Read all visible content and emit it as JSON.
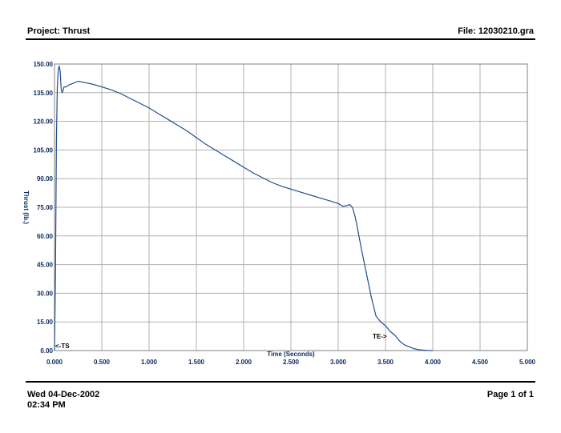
{
  "header": {
    "project": "Project: Thrust",
    "file": "File: 12030210.gra"
  },
  "footer": {
    "date": "Wed 04-Dec-2002",
    "time": "02:34 PM",
    "page": "Page 1 of 1"
  },
  "colors": {
    "line": "#1f4e8c",
    "grid": "#b0b0b0",
    "frame": "#808080",
    "text": "#0a2a5c"
  },
  "chart_data": {
    "type": "line",
    "title": "",
    "xlabel": "Time (Seconds)",
    "ylabel": "Thrust (lb.)",
    "xlim": [
      0,
      5
    ],
    "ylim": [
      0,
      150
    ],
    "xticks": [
      0,
      0.5,
      1,
      1.5,
      2,
      2.5,
      3,
      3.5,
      4,
      4.5,
      5
    ],
    "xtick_labels": [
      "0.000",
      "0.500",
      "1.000",
      "1.500",
      "2.000",
      "2.500",
      "3.000",
      "3.500",
      "4.000",
      "4.500",
      "5.000"
    ],
    "yticks": [
      0,
      15,
      30,
      45,
      60,
      75,
      90,
      105,
      120,
      135,
      150
    ],
    "ytick_labels": [
      "0.00",
      "15.00",
      "30.00",
      "45.00",
      "60.00",
      "75.00",
      "90.00",
      "105.00",
      "120.00",
      "135.00",
      "150.00"
    ],
    "grid": true,
    "annotations": [
      {
        "text": "<-TS",
        "x": 0.0,
        "y": 0
      },
      {
        "text": "TE->",
        "x": 3.5,
        "y": 5
      }
    ],
    "series": [
      {
        "x": [
          0.0,
          0.01,
          0.02,
          0.03,
          0.04,
          0.05,
          0.06,
          0.07,
          0.08,
          0.09,
          0.1,
          0.12,
          0.15,
          0.2,
          0.25,
          0.3,
          0.4,
          0.5,
          0.6,
          0.7,
          0.8,
          0.9,
          1.0,
          1.1,
          1.2,
          1.3,
          1.4,
          1.5,
          1.6,
          1.7,
          1.8,
          1.9,
          2.0,
          2.1,
          2.2,
          2.3,
          2.4,
          2.5,
          2.6,
          2.7,
          2.8,
          2.9,
          3.0,
          3.05,
          3.1,
          3.12,
          3.15,
          3.18,
          3.2,
          3.25,
          3.3,
          3.35,
          3.4,
          3.45,
          3.5,
          3.55,
          3.6,
          3.65,
          3.7,
          3.75,
          3.8,
          3.85,
          3.9,
          3.95,
          4.0
        ],
        "y": [
          0,
          40,
          110,
          138,
          147,
          149,
          146,
          137,
          135,
          136,
          138,
          138,
          139,
          140,
          141,
          140.5,
          139.5,
          138,
          136.5,
          134.5,
          132,
          129.5,
          127,
          124,
          121,
          118,
          115,
          111.5,
          108,
          105,
          102,
          99,
          96,
          93,
          90.5,
          88,
          86,
          84.5,
          83,
          81.5,
          80,
          78.5,
          77,
          75.5,
          76,
          76.5,
          75,
          70,
          65,
          52,
          40,
          28,
          18,
          15,
          13,
          10,
          8,
          5,
          3,
          2,
          1,
          0.5,
          0.2,
          0.05,
          0
        ]
      }
    ]
  }
}
